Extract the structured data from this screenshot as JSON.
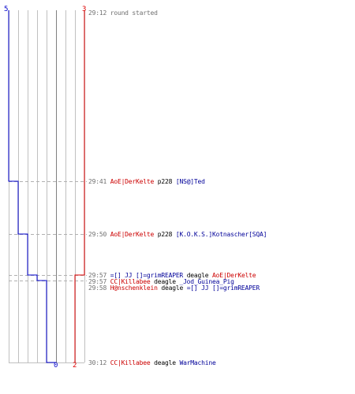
{
  "colors": {
    "red_team": "#dd0000",
    "blue_team": "#0000cc",
    "grid": "#c0c0c0",
    "dash": "#b0b0b0",
    "time": "#707070"
  },
  "teams": {
    "blue": {
      "start_count": "5",
      "end_count": "0"
    },
    "red": {
      "start_count": "3",
      "end_count": "2"
    }
  },
  "events": [
    {
      "time": "29:12",
      "note": "round started"
    },
    {
      "time": "29:41",
      "killer": "AoE|DerKelte",
      "killer_team": "red",
      "weapon": "p228",
      "victim": "[NS@]Ted",
      "victim_team": "blue"
    },
    {
      "time": "29:50",
      "killer": "AoE|DerKelte",
      "killer_team": "red",
      "weapon": "p228",
      "victim": "[K.O.K.S.]Kotnascher[SQA]",
      "victim_team": "blue"
    },
    {
      "time": "29:57",
      "killer": "=[] JJ []=grimREAPER",
      "killer_team": "blue",
      "weapon": "deagle",
      "victim": "AoE|DerKelte",
      "victim_team": "red"
    },
    {
      "time": "29:57",
      "killer": "CC|Killabee",
      "killer_team": "red",
      "weapon": "deagle",
      "victim": "_Jod_Guinea_Pig",
      "victim_team": "blue"
    },
    {
      "time": "29:58",
      "killer": "H@nschenklein",
      "killer_team": "red",
      "weapon": "deagle",
      "victim": "=[] JJ []=grimREAPER",
      "victim_team": "blue"
    },
    {
      "time": "30:12",
      "killer": "CC|Killabee",
      "killer_team": "red",
      "weapon": "deagle",
      "victim": "WarMachine",
      "victim_team": "blue"
    }
  ]
}
